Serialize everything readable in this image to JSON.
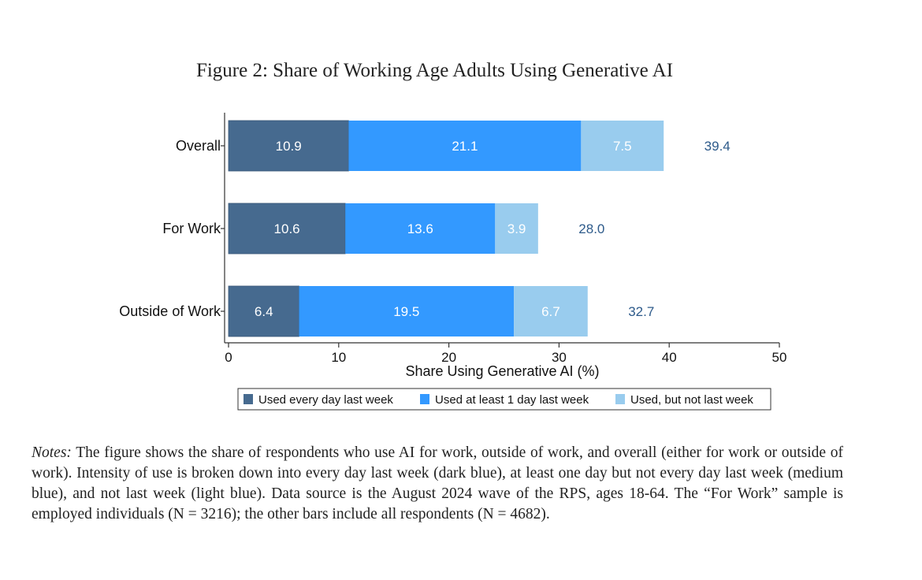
{
  "figure_title": "Figure 2: Share of Working Age Adults Using Generative AI",
  "chart_data": {
    "type": "bar",
    "orientation": "horizontal",
    "stacked": true,
    "categories": [
      "Overall",
      "For Work",
      "Outside of Work"
    ],
    "series": [
      {
        "name": "Used every day last week",
        "values": [
          10.9,
          10.6,
          6.4
        ],
        "color": "#466a8f"
      },
      {
        "name": "Used at least 1 day last week",
        "values": [
          21.1,
          13.6,
          19.5
        ],
        "color": "#3399ff"
      },
      {
        "name": "Used, but not last week",
        "values": [
          7.5,
          3.9,
          6.7
        ],
        "color": "#99ccee"
      }
    ],
    "segment_labels": [
      [
        "10.9",
        "21.1",
        "7.5"
      ],
      [
        "10.6",
        "13.6",
        "3.9"
      ],
      [
        "6.4",
        "19.5",
        "6.7"
      ]
    ],
    "totals": [
      "39.4",
      "28.0",
      "32.7"
    ],
    "total_label_color": "#2d5a8a",
    "xlabel": "Share Using Generative AI (%)",
    "ylabel": "",
    "xlim": [
      0,
      50
    ],
    "xticks": [
      0,
      10,
      20,
      30,
      40,
      50
    ],
    "grid": false,
    "legend_position": "bottom"
  },
  "notes": {
    "lead": "Notes:",
    "text": " The figure shows the share of respondents who use AI for work, outside of work, and overall (either for work or outside of work). Intensity of use is broken down into every day last week (dark blue), at least one day but not every day last week (medium blue), and not last week (light blue). Data source is the August 2024 wave of the RPS, ages 18-64. The “For Work” sample is employed individuals (N = 3216); the other bars include all respondents (N = 4682)."
  }
}
